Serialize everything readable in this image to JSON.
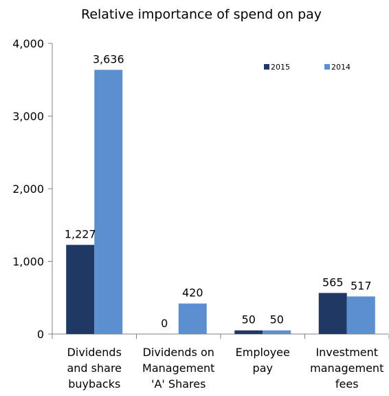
{
  "chart_data": {
    "type": "bar",
    "title": "Relative importance of spend on pay",
    "categories": [
      [
        "Dividends",
        "and share",
        "buybacks"
      ],
      [
        "Dividends on",
        "Management",
        "'A' Shares"
      ],
      [
        "Employee",
        "pay"
      ],
      [
        "Investment",
        "management",
        "fees"
      ]
    ],
    "series": [
      {
        "name": "2015",
        "color": "#1f3864",
        "values": [
          1227,
          0,
          50,
          565
        ],
        "labels": [
          "1,227",
          "0",
          "50",
          "565"
        ]
      },
      {
        "name": "2014",
        "color": "#5b8fd0",
        "values": [
          3636,
          420,
          50,
          517
        ],
        "labels": [
          "3,636",
          "420",
          "50",
          "517"
        ]
      }
    ],
    "ylim": [
      0,
      4000
    ],
    "yticks": [
      0,
      1000,
      2000,
      3000,
      4000
    ],
    "ytick_labels": [
      "0",
      "1,000",
      "2,000",
      "3,000",
      "4,000"
    ],
    "xlabel": "",
    "ylabel": "",
    "grid": false,
    "legend_position": "top-right"
  }
}
